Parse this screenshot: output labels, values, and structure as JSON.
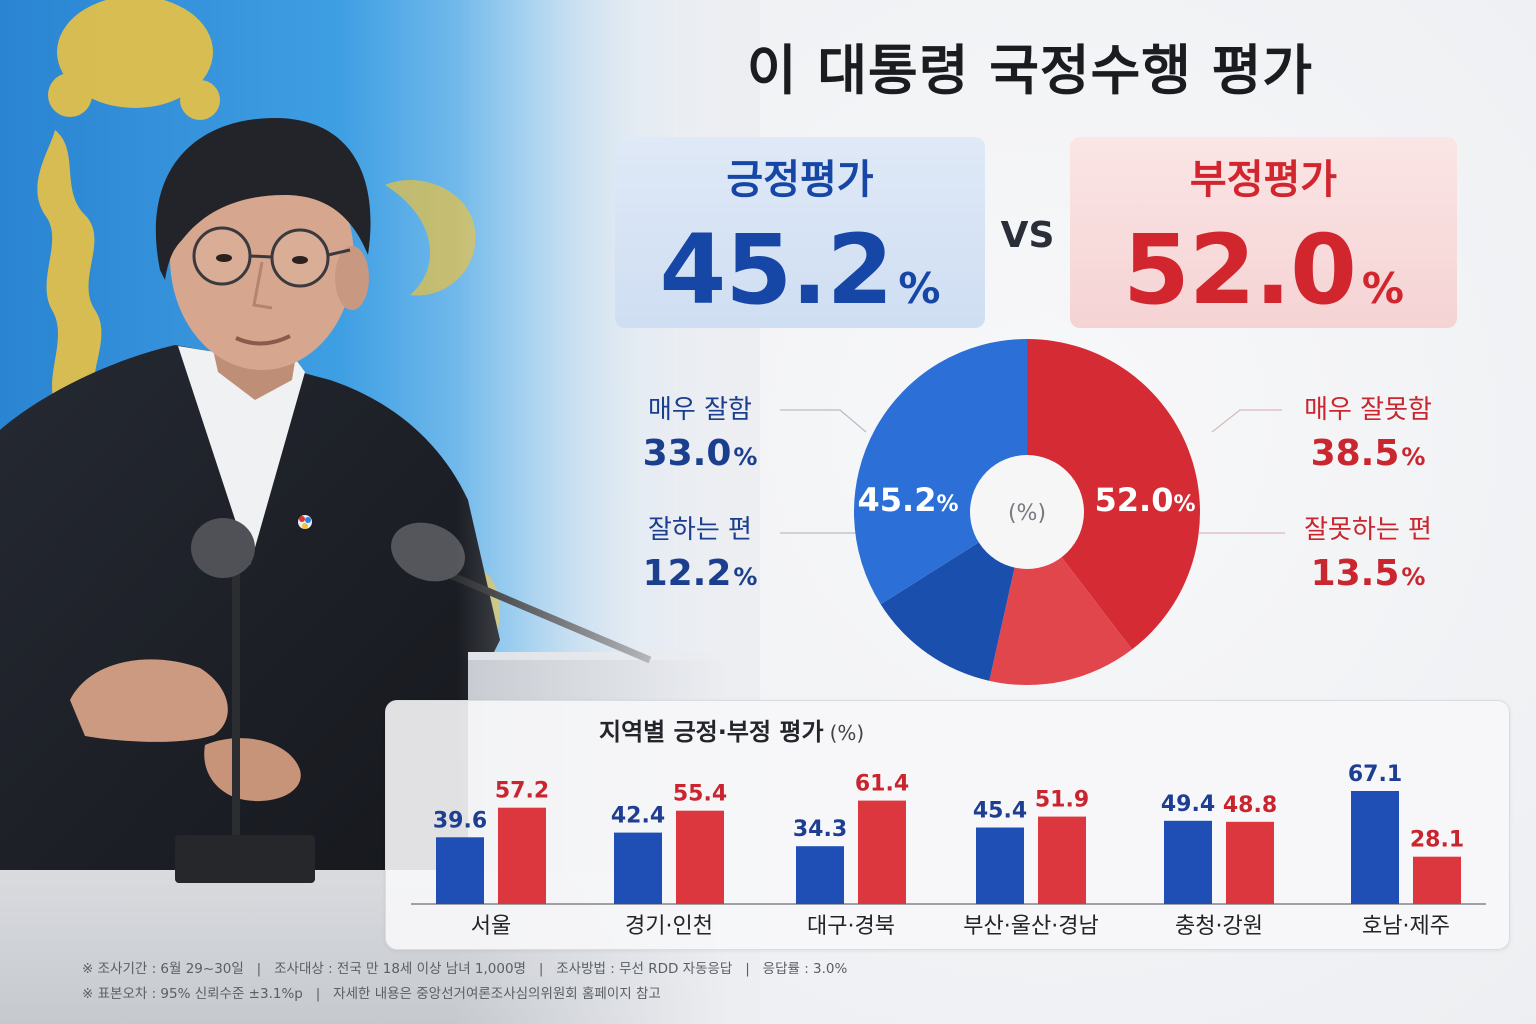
{
  "header": {
    "title": "이 대통령 국정수행 평가"
  },
  "summary": {
    "positive": {
      "label": "긍정평가",
      "value": "45.2",
      "unit": "%"
    },
    "vs": "VS",
    "negative": {
      "label": "부정평가",
      "value": "52.0",
      "unit": "%"
    }
  },
  "colors": {
    "positive": "#1747a6",
    "negative": "#d2262f"
  },
  "chart_data": [
    {
      "type": "pie",
      "donut": true,
      "center_label": "(%)",
      "unit": "%",
      "totals": [
        45.2,
        52.0
      ],
      "slices": [
        {
          "label": "매우 잘함",
          "value": 33.0,
          "color": "#2c6fd6"
        },
        {
          "label": "잘하는 편",
          "value": 12.2,
          "color": "#1b4fae"
        },
        {
          "label": "매우 잘못함",
          "value": 38.5,
          "color": "#d42b34"
        },
        {
          "label": "잘못하는 편",
          "value": 13.5,
          "color": "#e2464d"
        }
      ]
    },
    {
      "type": "bar",
      "title": "지역별 긍정·부정 평가",
      "unit_label": "(%)",
      "categories": [
        "서울",
        "경기·인천",
        "대구·경북",
        "부산·울산·경남",
        "충청·강원",
        "호남·제주"
      ],
      "series": [
        {
          "values": [
            39.6,
            42.4,
            34.3,
            45.4,
            49.4,
            67.1
          ],
          "color": "#1f4fb4",
          "label_color": "#1e3f91"
        },
        {
          "values": [
            57.2,
            55.4,
            61.4,
            51.9,
            48.8,
            28.1
          ],
          "color": "#dc363e",
          "label_color": "#c9252e"
        }
      ]
    }
  ],
  "footnotes": [
    "※ 조사기간 : 6월 29~30일   |   조사대상 : 전국 만 18세 이상 남녀 1,000명   |   조사방법 : 무선 RDD 자동응답   |   응답률 : 3.0%",
    "※ 표본오차 : 95% 신뢰수준 ±3.1%p   |   자세한 내용은 중앙선거여론조사심의위원회 홈페이지 참고"
  ]
}
